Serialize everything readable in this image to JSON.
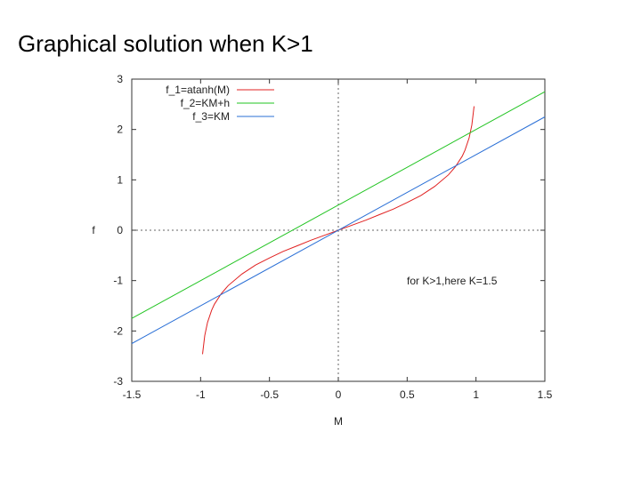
{
  "slide": {
    "title": "Graphical solution when K>1"
  },
  "chart_data": {
    "type": "line",
    "title": "",
    "xlabel": "M",
    "ylabel": "f",
    "xlim": [
      -1.5,
      1.5
    ],
    "ylim": [
      -3,
      3
    ],
    "xticks": [
      -1.5,
      -1,
      -0.5,
      0,
      0.5,
      1,
      1.5
    ],
    "yticks": [
      -3,
      -2,
      -1,
      0,
      1,
      2,
      3
    ],
    "xtick_labels": [
      "-1.5",
      "-1",
      "-0.5",
      "0",
      "0.5",
      "1",
      "1.5"
    ],
    "ytick_labels": [
      "-3",
      "-2",
      "-1",
      "0",
      "1",
      "2",
      "3"
    ],
    "grid": false,
    "zero_lines": true,
    "legend_position": "top-left",
    "annotation": "for K>1,here K=1.5",
    "series": [
      {
        "name": "f_1=atanh(M)",
        "color": "#e02020",
        "x": [
          -0.986,
          -0.97,
          -0.95,
          -0.92,
          -0.9,
          -0.85,
          -0.8,
          -0.7,
          -0.6,
          -0.5,
          -0.4,
          -0.3,
          -0.2,
          -0.1,
          0,
          0.1,
          0.2,
          0.3,
          0.4,
          0.5,
          0.6,
          0.7,
          0.8,
          0.85,
          0.9,
          0.92,
          0.95,
          0.97,
          0.986
        ],
        "y": [
          -2.46,
          -2.09,
          -1.83,
          -1.59,
          -1.47,
          -1.26,
          -1.1,
          -0.87,
          -0.69,
          -0.55,
          -0.42,
          -0.31,
          -0.2,
          -0.1,
          0,
          0.1,
          0.2,
          0.31,
          0.42,
          0.55,
          0.69,
          0.87,
          1.1,
          1.26,
          1.47,
          1.59,
          1.83,
          2.09,
          2.46
        ]
      },
      {
        "name": "f_2=KM+h",
        "color": "#22c422",
        "x": [
          -1.5,
          1.5
        ],
        "y": [
          -1.75,
          2.75
        ]
      },
      {
        "name": "f_3=KM",
        "color": "#2a6fd6",
        "x": [
          -1.5,
          1.5
        ],
        "y": [
          -2.25,
          2.25
        ]
      }
    ]
  }
}
